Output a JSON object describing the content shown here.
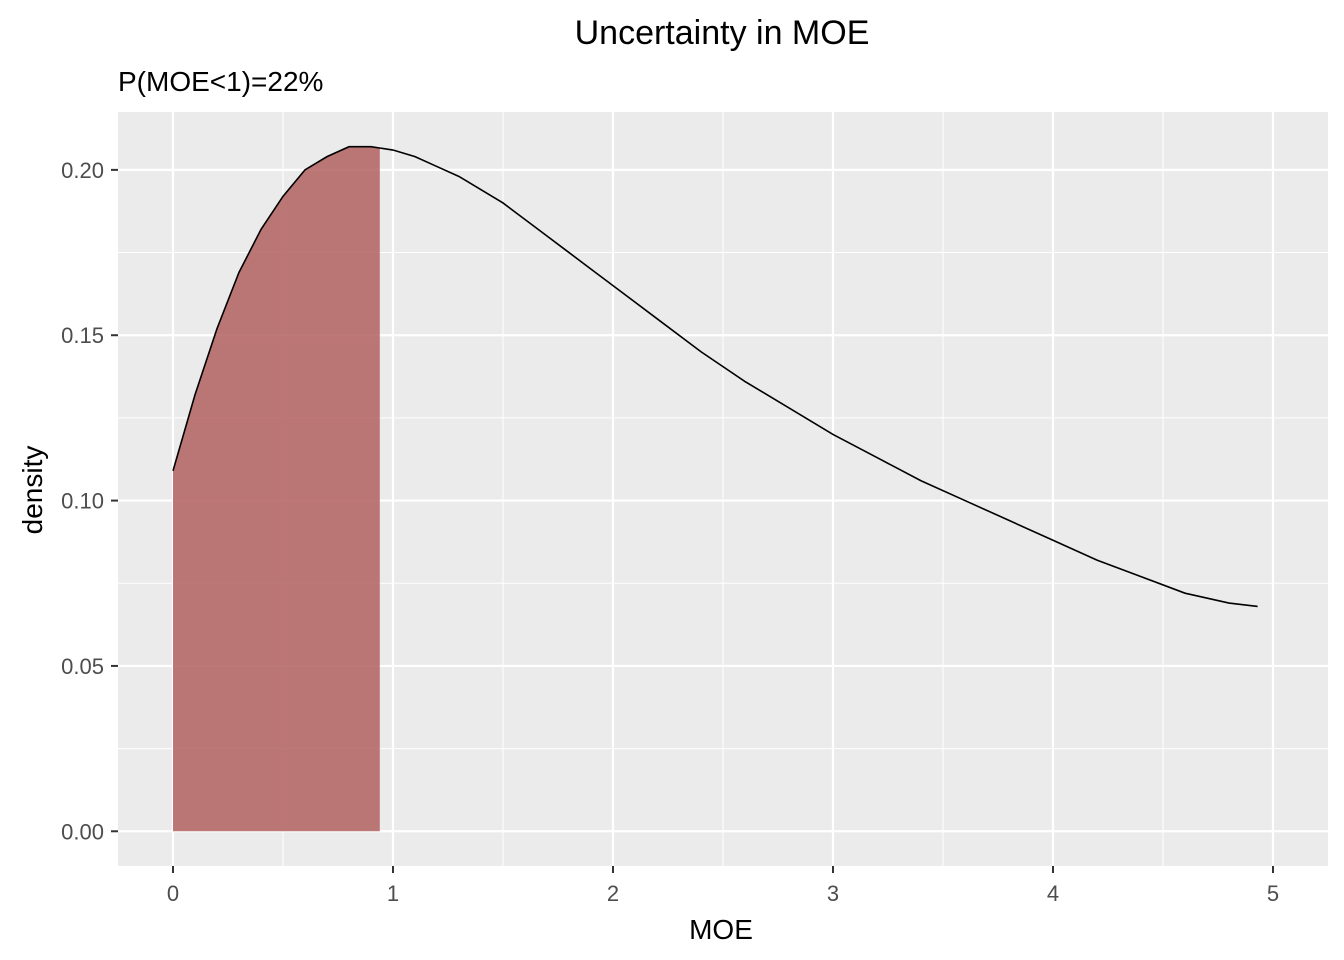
{
  "chart_data": {
    "type": "area",
    "title": "Uncertainty in MOE",
    "subtitle": "P(MOE<1)=22%",
    "xlabel": "MOE",
    "ylabel": "density",
    "xlim": [
      -0.25,
      5.25
    ],
    "ylim": [
      -0.0105,
      0.2175
    ],
    "x_ticks": [
      0,
      1,
      2,
      3,
      4,
      5
    ],
    "x_tick_labels": [
      "0",
      "1",
      "2",
      "3",
      "4",
      "5"
    ],
    "y_ticks": [
      0.0,
      0.05,
      0.1,
      0.15,
      0.2
    ],
    "y_tick_labels": [
      "0.00",
      "0.05",
      "0.10",
      "0.15",
      "0.20"
    ],
    "grid": true,
    "background": "#ebebeb",
    "line_color": "#000000",
    "fill_color": "#b16060",
    "shaded_range": [
      0,
      0.94
    ],
    "series": [
      {
        "x": [
          0,
          0.1,
          0.2,
          0.3,
          0.4,
          0.5,
          0.6,
          0.7,
          0.8,
          0.9,
          1.0,
          1.1,
          1.2,
          1.3,
          1.4,
          1.5,
          1.6,
          1.7,
          1.8,
          1.9,
          2.0,
          2.2,
          2.4,
          2.6,
          2.8,
          3.0,
          3.2,
          3.4,
          3.6,
          3.8,
          4.0,
          4.2,
          4.4,
          4.6,
          4.8,
          4.93
        ],
        "y": [
          0.109,
          0.132,
          0.152,
          0.169,
          0.182,
          0.192,
          0.2,
          0.204,
          0.207,
          0.207,
          0.206,
          0.204,
          0.201,
          0.198,
          0.194,
          0.19,
          0.185,
          0.18,
          0.175,
          0.17,
          0.165,
          0.155,
          0.145,
          0.136,
          0.128,
          0.12,
          0.113,
          0.106,
          0.1,
          0.094,
          0.088,
          0.082,
          0.077,
          0.072,
          0.069,
          0.068
        ]
      }
    ]
  }
}
